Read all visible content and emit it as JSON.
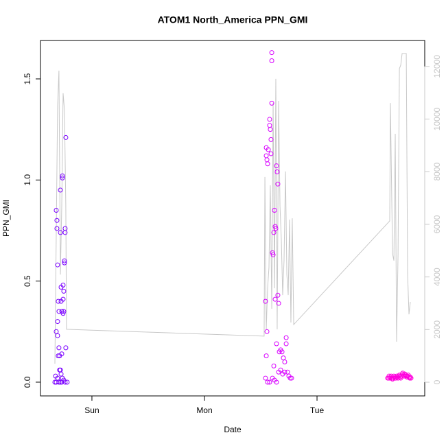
{
  "chart_data": {
    "type": "scatter",
    "title": "ATOM1 North_America PPN_GMI",
    "x_label": "Date",
    "y_label": "PPN_GMI",
    "xlim": [
      0.543,
      3.957
    ],
    "xticks": [
      {
        "value": 1,
        "label": "Sun"
      },
      {
        "value": 2,
        "label": "Mon"
      },
      {
        "value": 3,
        "label": "Tue"
      }
    ],
    "ylim": [
      -0.068,
      1.69
    ],
    "yticks": [
      {
        "value": 0,
        "label": "0.0"
      },
      0.5,
      {
        "value": 1,
        "label": "1.0"
      },
      1.5
    ],
    "y2lim": [
      -521,
      12986
    ],
    "y2ticks": [
      0,
      2000,
      4000,
      6000,
      8000,
      10000,
      12000
    ],
    "y2_color": "#c8c8c8",
    "series": [
      {
        "color": "#c8c8c8",
        "type": "line",
        "axis": "y2",
        "x": [
          0.671,
          0.695,
          0.707,
          0.72,
          0.732,
          0.744,
          0.756,
          0.768,
          0.774,
          2.53,
          2.537,
          2.549,
          2.561,
          2.573,
          2.585,
          2.598,
          2.61,
          2.622,
          2.634,
          2.646,
          2.659,
          2.671,
          2.683,
          2.695,
          2.707,
          2.72,
          2.732,
          2.744,
          2.756,
          2.768,
          2.78,
          2.793,
          3.646,
          3.652,
          3.671,
          3.683,
          3.695,
          3.707,
          3.72,
          3.732,
          3.744,
          3.756,
          3.793,
          3.805,
          3.817,
          3.829
        ],
        "values": [
          704,
          10480,
          11840,
          4090,
          6700,
          10980,
          10350,
          6700,
          2010,
          1750,
          7800,
          2010,
          3570,
          4360,
          7480,
          2790,
          10610,
          3570,
          11530,
          2010,
          10690,
          6700,
          5400,
          3310,
          4620,
          8010,
          4090,
          3310,
          6180,
          2270,
          6230,
          2190,
          6130,
          10610,
          4880,
          4620,
          9440,
          1540,
          4880,
          11920,
          12050,
          12490,
          12490,
          4090,
          2580,
          3050
        ]
      },
      {
        "color": "#7a00ff",
        "type": "scatter",
        "x": [
          0.683,
          0.689,
          0.689,
          0.695,
          0.683,
          0.695,
          0.701,
          0.707,
          0.695,
          0.707,
          0.713,
          0.701,
          0.72,
          0.72,
          0.726,
          0.726,
          0.732,
          0.738,
          0.738,
          0.744,
          0.744,
          0.75,
          0.756,
          0.756,
          0.762,
          0.762,
          0.768,
          0.768,
          0.75,
          0.744,
          0.732,
          0.72,
          0.726,
          0.738,
          0.75,
          0.762,
          0.78,
          0.671,
          0.683,
          0.707,
          0.72,
          0.732,
          0.695,
          0.713,
          0.677
        ],
        "values": [
          0.85,
          0.8,
          0.76,
          0.58,
          0.25,
          0.23,
          0.4,
          0.35,
          0.3,
          0.17,
          0.13,
          0.13,
          0.95,
          0.74,
          0.4,
          0.47,
          0.35,
          1.02,
          1.01,
          0.48,
          0.41,
          0.45,
          0.6,
          0.59,
          0.74,
          0.76,
          1.21,
          0.17,
          0.35,
          0.34,
          0.14,
          0.06,
          0.04,
          0.02,
          0.01,
          0,
          0,
          0,
          0,
          0,
          0,
          0,
          0.02,
          0.06,
          0.03
        ]
      },
      {
        "color": "#d800ff",
        "type": "scatter",
        "x": [
          2.542,
          2.549,
          2.549,
          2.555,
          2.561,
          2.555,
          2.549,
          2.567,
          2.579,
          2.579,
          2.585,
          2.591,
          2.598,
          2.598,
          2.598,
          2.591,
          2.604,
          2.61,
          2.616,
          2.622,
          2.628,
          2.634,
          2.64,
          2.646,
          2.652,
          2.652,
          2.659,
          2.64,
          2.665,
          2.677,
          2.689,
          2.701,
          2.713,
          2.726,
          2.726,
          2.738,
          2.75,
          2.762,
          2.774,
          2.542,
          2.561,
          2.579,
          2.604,
          2.622,
          2.64,
          2.659,
          2.677,
          2.695,
          2.713,
          2.616,
          2.628
        ],
        "values": [
          0.4,
          1.16,
          1.12,
          1.1,
          1.08,
          0.25,
          0.13,
          1.15,
          1.27,
          1.3,
          1.25,
          1.2,
          1.63,
          1.59,
          1.38,
          1.13,
          0.64,
          0.63,
          0.74,
          0.85,
          0.77,
          0.76,
          1.07,
          1.04,
          0.98,
          0.43,
          0.39,
          0.19,
          0.15,
          0.16,
          0.15,
          0.12,
          0.1,
          0.22,
          0.19,
          0.05,
          0.03,
          0.02,
          0.02,
          0.02,
          0,
          0,
          0.02,
          0.01,
          0,
          0.05,
          0.06,
          0.04,
          0.05,
          0.08,
          0.41
        ]
      },
      {
        "color": "#ff00dd",
        "type": "scatter",
        "x": [
          3.628,
          3.634,
          3.64,
          3.646,
          3.652,
          3.659,
          3.665,
          3.671,
          3.677,
          3.683,
          3.689,
          3.695,
          3.701,
          3.707,
          3.713,
          3.72,
          3.726,
          3.732,
          3.738,
          3.744,
          3.75,
          3.756,
          3.762,
          3.768,
          3.774,
          3.781,
          3.787,
          3.793,
          3.799,
          3.805,
          3.811,
          3.817,
          3.823,
          3.829,
          3.835
        ],
        "values": [
          0.02,
          0.02,
          0.03,
          0.02,
          0.025,
          0.03,
          0.02,
          0.015,
          0.02,
          0.03,
          0.025,
          0.02,
          0.02,
          0.03,
          0.025,
          0.02,
          0.03,
          0.035,
          0.025,
          0.02,
          0.03,
          0.04,
          0.045,
          0.035,
          0.03,
          0.04,
          0.035,
          0.03,
          0.025,
          0.03,
          0.035,
          0.025,
          0.02,
          0.025,
          0.02
        ]
      }
    ]
  }
}
